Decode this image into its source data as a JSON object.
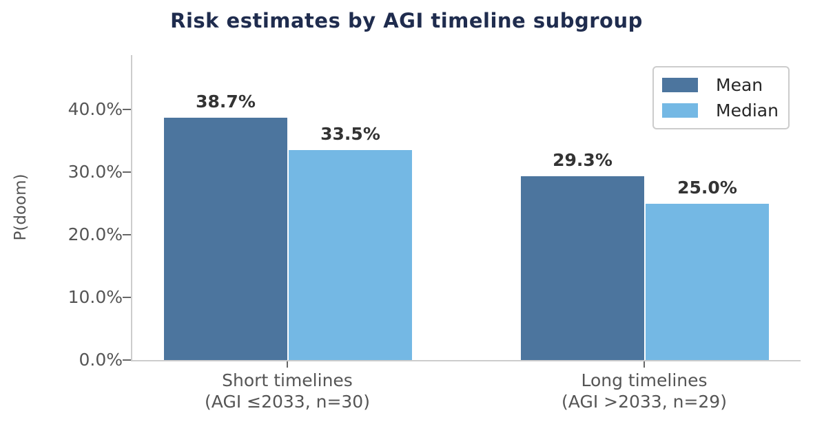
{
  "title": "Risk estimates by AGI timeline subgroup",
  "colors": {
    "title": "#1F2C4E",
    "mean_bar": "#4C759E",
    "median_bar": "#74B8E4",
    "axis_spine": "#cccccc",
    "tick_text": "#555555",
    "value_label_text": "#333333",
    "background": "#ffffff"
  },
  "chart_data": {
    "type": "bar",
    "title": "Risk estimates by AGI timeline subgroup",
    "xlabel": "",
    "ylabel": "P(doom)",
    "categories": [
      "Short timelines (AGI ≤2033, n=30)",
      "Long timelines (AGI >2033, n=29)"
    ],
    "category_lines": [
      [
        "Short timelines",
        "(AGI ≤2033, n=30)"
      ],
      [
        "Long timelines",
        "(AGI >2033, n=29)"
      ]
    ],
    "series": [
      {
        "name": "Mean",
        "color": "#4C759E",
        "values": [
          38.7,
          29.3
        ],
        "labels": [
          "38.7%",
          "29.3%"
        ]
      },
      {
        "name": "Median",
        "color": "#74B8E4",
        "values": [
          33.5,
          25.0
        ],
        "labels": [
          "33.5%",
          "25.0%"
        ]
      }
    ],
    "ytick_values": [
      0,
      10,
      20,
      30,
      40
    ],
    "ytick_labels": [
      "0.0%",
      "10.0%",
      "20.0%",
      "30.0%",
      "40.0%"
    ],
    "ylim": [
      0,
      48.7
    ],
    "grid": false,
    "legend_position": "upper right",
    "legend_entries": [
      "Mean",
      "Median"
    ]
  }
}
